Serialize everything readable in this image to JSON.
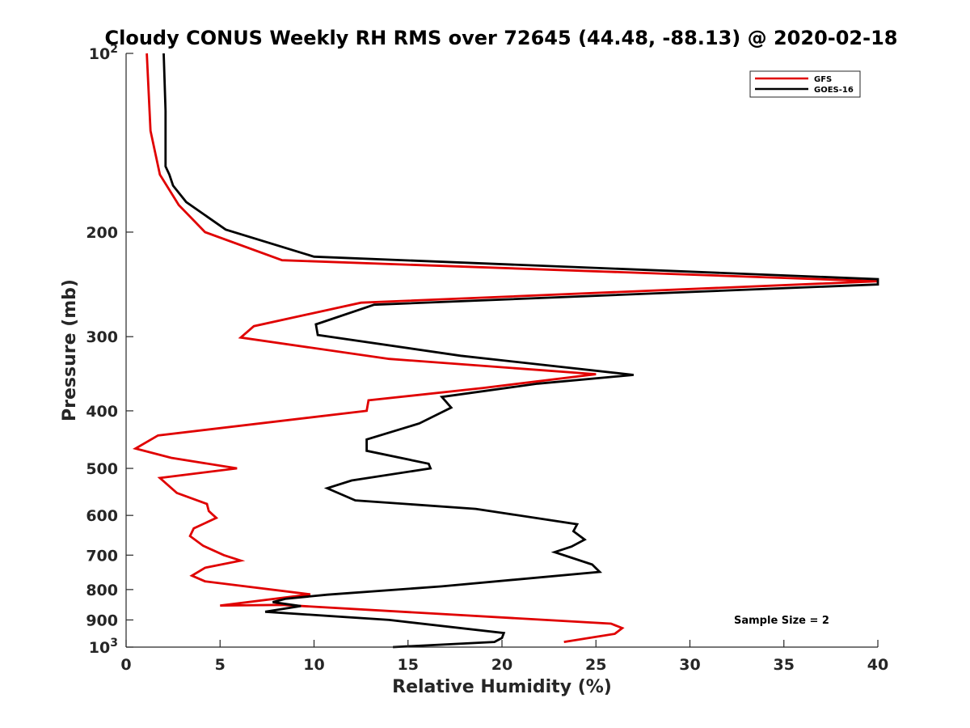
{
  "chart_data": {
    "type": "line",
    "title": "Cloudy CONUS Weekly RH RMS over 72645 (44.48, -88.13) @ 2020-02-18",
    "xlabel": "Relative Humidity (%)",
    "ylabel": "Pressure (mb)",
    "xlim": [
      0,
      40
    ],
    "ylim": [
      100,
      1000
    ],
    "y_scale": "log",
    "y_reversed": true,
    "x_ticks": [
      0,
      5,
      10,
      15,
      20,
      25,
      30,
      35,
      40
    ],
    "y_ticks": [
      {
        "value": 100,
        "label": "10",
        "sup": "2"
      },
      {
        "value": 200,
        "label": "200",
        "sup": ""
      },
      {
        "value": 300,
        "label": "300",
        "sup": ""
      },
      {
        "value": 400,
        "label": "400",
        "sup": ""
      },
      {
        "value": 500,
        "label": "500",
        "sup": ""
      },
      {
        "value": 600,
        "label": "600",
        "sup": ""
      },
      {
        "value": 700,
        "label": "700",
        "sup": ""
      },
      {
        "value": 800,
        "label": "800",
        "sup": ""
      },
      {
        "value": 900,
        "label": "900",
        "sup": ""
      },
      {
        "value": 1000,
        "label": "10",
        "sup": "3"
      }
    ],
    "grid": false,
    "legend_position": "top-right",
    "annotation": "Sample Size = 2",
    "series": [
      {
        "name": "GFS",
        "color": "#e00000",
        "points": [
          [
            1.1,
            100
          ],
          [
            1.3,
            135
          ],
          [
            1.8,
            160
          ],
          [
            2.8,
            180
          ],
          [
            4.2,
            200
          ],
          [
            8.3,
            223
          ],
          [
            40,
            242
          ],
          [
            12.5,
            263
          ],
          [
            6.8,
            288
          ],
          [
            6.1,
            301
          ],
          [
            14,
            327
          ],
          [
            25,
            347
          ],
          [
            19,
            366
          ],
          [
            12.9,
            384
          ],
          [
            12.8,
            400
          ],
          [
            1.7,
            440
          ],
          [
            0.5,
            463
          ],
          [
            2.4,
            480
          ],
          [
            5.9,
            500
          ],
          [
            1.8,
            519
          ],
          [
            2.7,
            550
          ],
          [
            4.3,
            574
          ],
          [
            4.4,
            590
          ],
          [
            4.8,
            606
          ],
          [
            3.6,
            631
          ],
          [
            3.4,
            650
          ],
          [
            4.1,
            675
          ],
          [
            5.2,
            700
          ],
          [
            6.1,
            715
          ],
          [
            4.2,
            735
          ],
          [
            3.5,
            758
          ],
          [
            4.2,
            775
          ],
          [
            9.8,
            815
          ],
          [
            5,
            851
          ],
          [
            8.3,
            849
          ],
          [
            25.8,
            913
          ],
          [
            26.4,
            929
          ],
          [
            26,
            950
          ],
          [
            23.3,
            980
          ]
        ]
      },
      {
        "name": "GOES-16",
        "color": "#000000",
        "points": [
          [
            2,
            100
          ],
          [
            2.1,
            125
          ],
          [
            2.1,
            155
          ],
          [
            2.3,
            160
          ],
          [
            2.5,
            167
          ],
          [
            3.2,
            178
          ],
          [
            5.3,
            198
          ],
          [
            10,
            220
          ],
          [
            40,
            240
          ],
          [
            40,
            245
          ],
          [
            13.2,
            265
          ],
          [
            10.1,
            286
          ],
          [
            10.2,
            298
          ],
          [
            17.8,
            323
          ],
          [
            27,
            348
          ],
          [
            21.9,
            360
          ],
          [
            16.8,
            379
          ],
          [
            17.3,
            395
          ],
          [
            15.6,
            420
          ],
          [
            12.8,
            447
          ],
          [
            12.8,
            467
          ],
          [
            16.1,
            491
          ],
          [
            16.2,
            500
          ],
          [
            12,
            524
          ],
          [
            10.7,
            540
          ],
          [
            12.2,
            566
          ],
          [
            18.6,
            585
          ],
          [
            24,
            621
          ],
          [
            23.8,
            638
          ],
          [
            24.4,
            659
          ],
          [
            23.7,
            677
          ],
          [
            22.8,
            692
          ],
          [
            24.8,
            726
          ],
          [
            25.2,
            747
          ],
          [
            16.8,
            790
          ],
          [
            10.7,
            816
          ],
          [
            8.5,
            829
          ],
          [
            7.8,
            840
          ],
          [
            9.3,
            853
          ],
          [
            7.4,
            872
          ],
          [
            14,
            900
          ],
          [
            20.1,
            947
          ],
          [
            20,
            965
          ],
          [
            19.6,
            980
          ],
          [
            14.2,
            1000
          ]
        ]
      }
    ]
  }
}
